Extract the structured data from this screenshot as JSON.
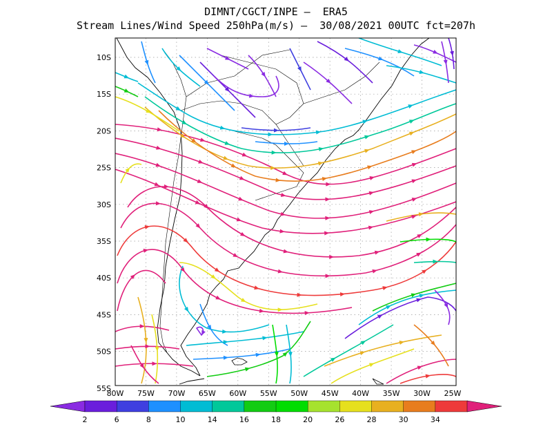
{
  "header": {
    "line1": "DIMNT/CGCT/INPE –  ERA5",
    "line2": "Stream Lines/Wind Speed 250hPa(m/s) –  30/08/2021 00UTC fct=207h"
  },
  "axes": {
    "lat_ticks": [
      "10S",
      "15S",
      "20S",
      "25S",
      "30S",
      "35S",
      "40S",
      "45S",
      "50S",
      "55S"
    ],
    "lon_ticks": [
      "80W",
      "75W",
      "70W",
      "65W",
      "60W",
      "55W",
      "50W",
      "45W",
      "40W",
      "35W",
      "30W",
      "25W"
    ],
    "lat_range": [
      -56,
      -7
    ],
    "lon_range": [
      -80,
      -24
    ],
    "grid": true
  },
  "colorbar": {
    "labels": [
      "2",
      "6",
      "8",
      "10",
      "14",
      "16",
      "18",
      "20",
      "26",
      "28",
      "30",
      "34"
    ],
    "colors": [
      "#8a2be2",
      "#6a1edc",
      "#3f3fe0",
      "#1e90ff",
      "#00bcd4",
      "#00c89a",
      "#12cc12",
      "#00dd00",
      "#a6e22e",
      "#e6e01e",
      "#e8b020",
      "#e87d1e",
      "#ee3a3a",
      "#e0207a"
    ]
  }
}
